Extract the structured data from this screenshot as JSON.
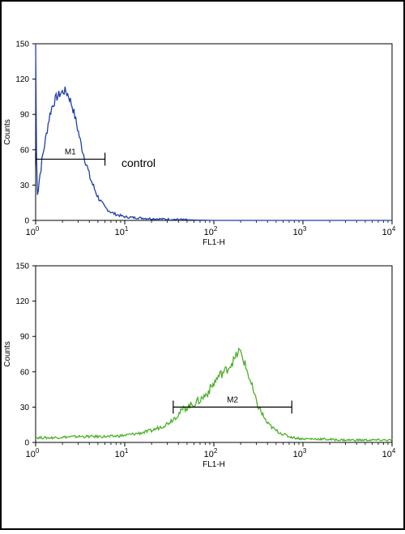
{
  "chart_data": [
    {
      "type": "line",
      "title": "",
      "xlabel": "FL1-H",
      "ylabel": "Counts",
      "xscale": "log",
      "xlim": [
        1,
        10000
      ],
      "ylim": [
        0,
        150
      ],
      "x_ticks": [
        {
          "base": "10",
          "exp": "0",
          "value": 1
        },
        {
          "base": "10",
          "exp": "1",
          "value": 10
        },
        {
          "base": "10",
          "exp": "2",
          "value": 100
        },
        {
          "base": "10",
          "exp": "3",
          "value": 1000
        },
        {
          "base": "10",
          "exp": "4",
          "value": 10000
        }
      ],
      "y_ticks": [
        "0",
        "30",
        "60",
        "90",
        "120",
        "150"
      ],
      "y_tick_values": [
        0,
        30,
        60,
        90,
        120,
        150
      ],
      "color": "#1f3fa8",
      "series": [
        {
          "x": [
            1,
            1.02,
            1.05,
            1.1,
            1.15,
            1.2,
            1.3,
            1.4,
            1.5,
            1.6,
            1.7,
            1.8,
            1.9,
            2.0,
            2.1,
            2.2,
            2.3,
            2.4,
            2.5,
            2.6,
            2.8,
            3.0,
            3.2,
            3.5,
            3.8,
            4.0,
            4.5,
            5.0,
            5.5,
            6.0,
            7.0,
            8.0,
            9.0,
            10,
            12,
            15,
            20,
            25,
            30,
            40,
            50,
            100,
            1000,
            10000
          ],
          "values": [
            150,
            60,
            20,
            35,
            45,
            55,
            70,
            85,
            95,
            100,
            104,
            106,
            108,
            109,
            110,
            109,
            107,
            104,
            100,
            96,
            86,
            76,
            66,
            55,
            45,
            38,
            28,
            20,
            15,
            11,
            7,
            5,
            4,
            3,
            2.5,
            2,
            1.5,
            1.2,
            1,
            0.8,
            0.5,
            0,
            0,
            0
          ]
        }
      ],
      "marker": {
        "label": "M1",
        "x_start": 1,
        "x_end": 6.0,
        "y": 52
      },
      "annotation": {
        "text": "control"
      }
    },
    {
      "type": "line",
      "title": "",
      "xlabel": "FL1-H",
      "ylabel": "Counts",
      "xscale": "log",
      "xlim": [
        1,
        10000
      ],
      "ylim": [
        0,
        150
      ],
      "x_ticks": [
        {
          "base": "10",
          "exp": "0",
          "value": 1
        },
        {
          "base": "10",
          "exp": "1",
          "value": 10
        },
        {
          "base": "10",
          "exp": "2",
          "value": 100
        },
        {
          "base": "10",
          "exp": "3",
          "value": 1000
        },
        {
          "base": "10",
          "exp": "4",
          "value": 10000
        }
      ],
      "y_ticks": [
        "0",
        "30",
        "60",
        "90",
        "120",
        "150"
      ],
      "y_tick_values": [
        0,
        30,
        60,
        90,
        120,
        150
      ],
      "color": "#4caf2a",
      "series": [
        {
          "x": [
            1,
            1.5,
            2,
            3,
            5,
            7,
            10,
            15,
            20,
            25,
            30,
            35,
            40,
            45,
            50,
            60,
            70,
            80,
            90,
            100,
            110,
            120,
            130,
            140,
            150,
            160,
            170,
            180,
            190,
            200,
            220,
            250,
            280,
            300,
            350,
            400,
            500,
            600,
            700,
            800,
            1000,
            1500,
            2000,
            3000,
            5000,
            10000
          ],
          "values": [
            4,
            4,
            4.5,
            5,
            5,
            5,
            6,
            8,
            10,
            13,
            16,
            20,
            24,
            28,
            30,
            33,
            36,
            40,
            45,
            50,
            55,
            58,
            60,
            62,
            65,
            68,
            70,
            74,
            78,
            76,
            68,
            55,
            42,
            34,
            24,
            16,
            10,
            7,
            5,
            4,
            3,
            3,
            2.5,
            2,
            2,
            2
          ]
        }
      ],
      "marker": {
        "label": "M2",
        "x_start": 35,
        "x_end": 750,
        "y": 30
      }
    }
  ]
}
